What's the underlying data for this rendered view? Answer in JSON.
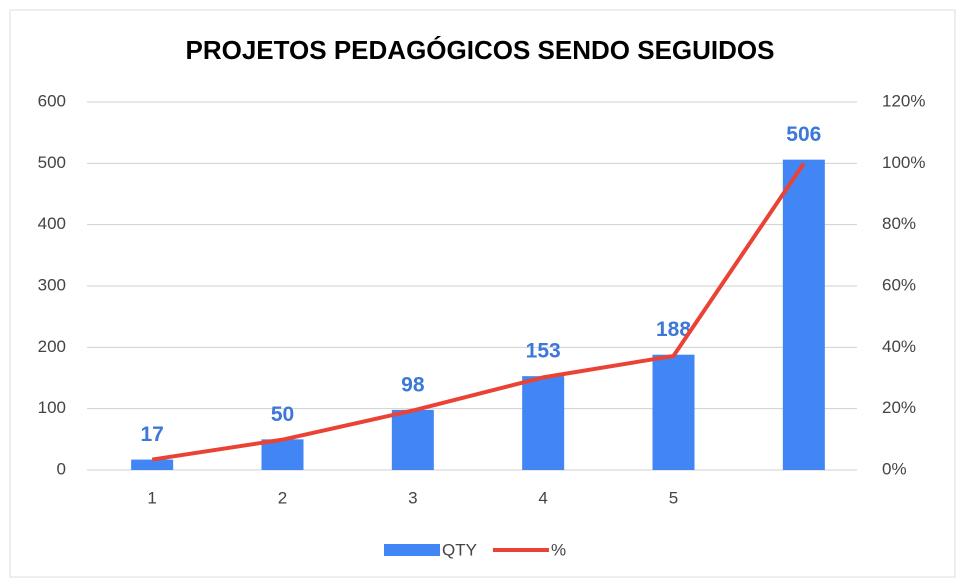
{
  "chart_data": {
    "type": "bar",
    "title": "PROJETOS PEDAGÓGICOS  SENDO SEGUIDOS",
    "categories": [
      "1",
      "2",
      "3",
      "4",
      "5",
      null
    ],
    "series": [
      {
        "name": "QTY",
        "type": "bar",
        "color": "#4285f4",
        "values": [
          17,
          50,
          98,
          153,
          188,
          506
        ]
      },
      {
        "name": "%",
        "type": "line",
        "axis": "y2",
        "color": "#ea4335",
        "values": [
          3.4,
          9.9,
          19.4,
          30.2,
          37.2,
          100
        ]
      }
    ],
    "ylim": [
      0,
      600
    ],
    "yticks": [
      0,
      100,
      200,
      300,
      400,
      500,
      600
    ],
    "y2lim": [
      0,
      120
    ],
    "y2ticks": [
      {
        "value": 0,
        "label": "0%"
      },
      {
        "value": 20,
        "label": "20%"
      },
      {
        "value": 40,
        "label": "40%"
      },
      {
        "value": 60,
        "label": "60%"
      },
      {
        "value": 80,
        "label": "80%"
      },
      {
        "value": 100,
        "label": "100%"
      },
      {
        "value": 120,
        "label": "120%"
      }
    ],
    "grid": true,
    "legend": "bottom"
  }
}
